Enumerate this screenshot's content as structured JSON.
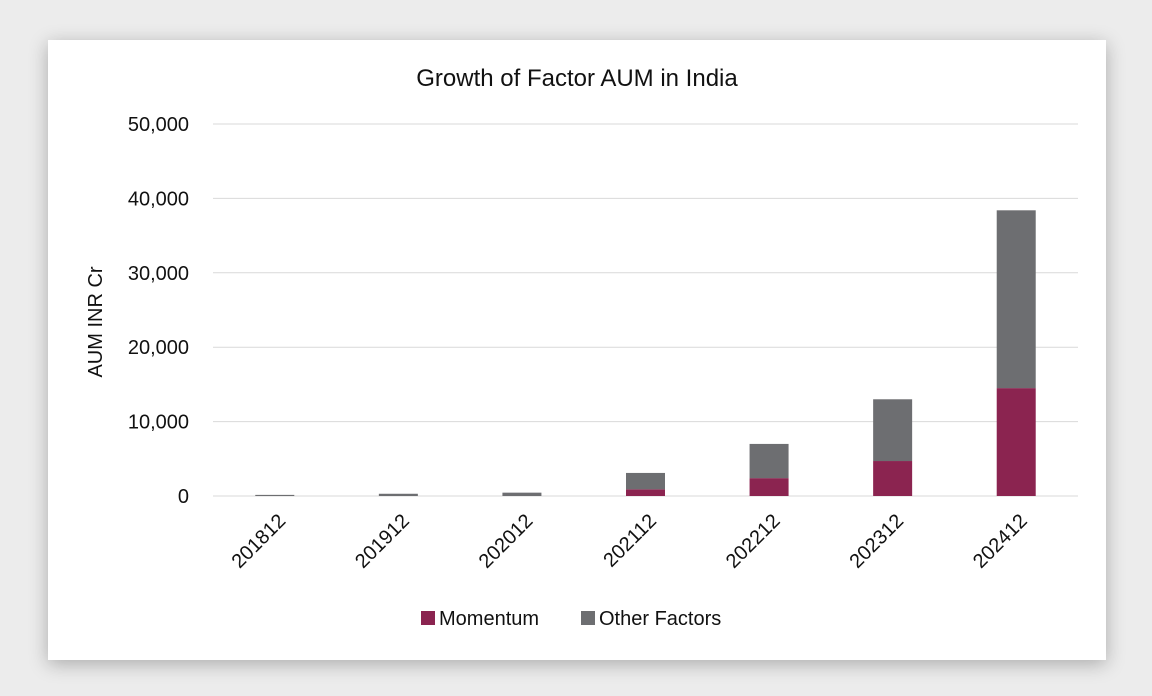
{
  "chart_data": {
    "type": "bar",
    "stacked": true,
    "title": "Growth of Factor AUM in India",
    "xlabel": "",
    "ylabel": "AUM INR Cr",
    "categories": [
      "201812",
      "201912",
      "202012",
      "202112",
      "202212",
      "202312",
      "202412"
    ],
    "series": [
      {
        "name": "Momentum",
        "color": "#8b2450",
        "values": [
          0,
          0,
          0,
          900,
          2400,
          4700,
          14500
        ]
      },
      {
        "name": "Other Factors",
        "color": "#6d6e71",
        "values": [
          150,
          300,
          450,
          2200,
          4600,
          8300,
          23900
        ]
      }
    ],
    "ylim": [
      0,
      50000
    ],
    "yticks": [
      "0",
      "10,000",
      "20,000",
      "30,000",
      "40,000",
      "50,000"
    ],
    "grid": true,
    "legend_position": "bottom"
  }
}
